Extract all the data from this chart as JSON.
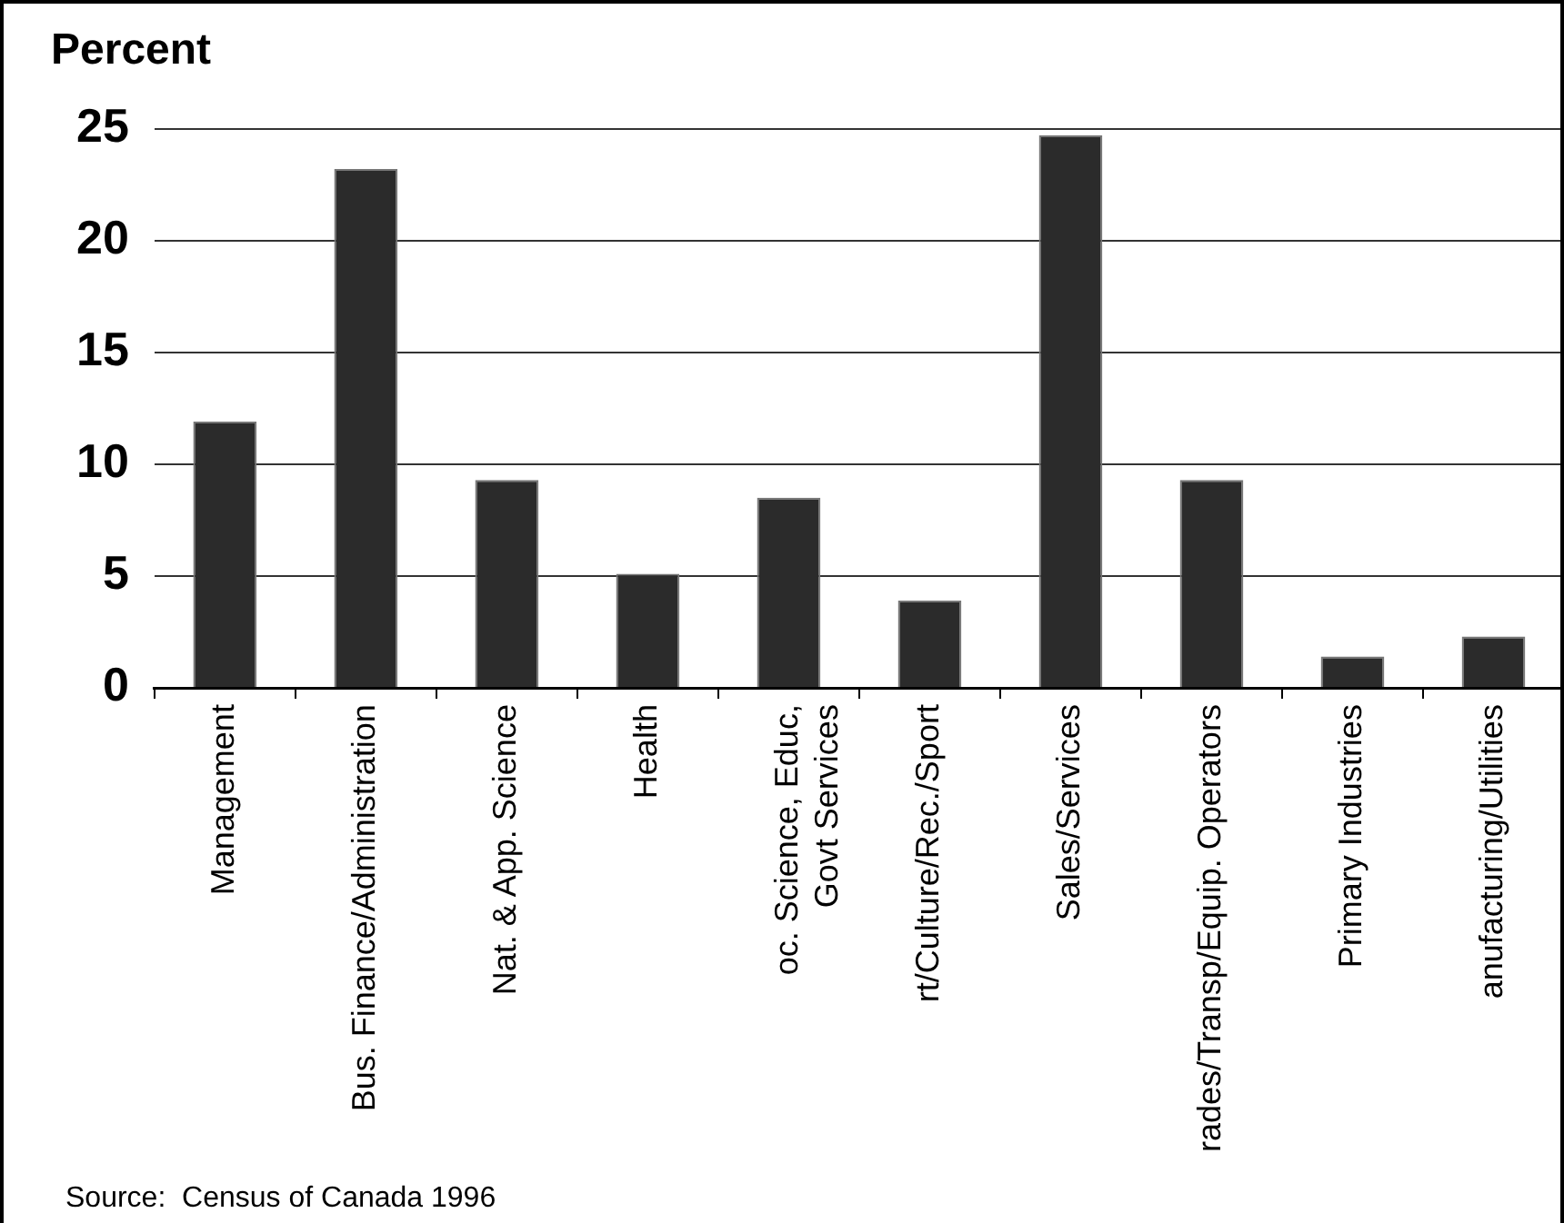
{
  "chart_data": {
    "type": "bar",
    "title": "Percent",
    "categories": [
      "Management",
      "Bus. Finance/Administration",
      "Nat. & App. Science",
      "Health",
      "oc. Science, Educ,\nGovt Services",
      "rt/Culture/Rec./Sport",
      "Sales/Services",
      "rades/Transp/Equip. Operators",
      "Primary Industries",
      "anufacturing/Utilities"
    ],
    "values": [
      11.9,
      23.2,
      9.3,
      5.1,
      8.5,
      3.9,
      24.7,
      9.3,
      1.4,
      2.3
    ],
    "color": "#2b2b2b",
    "ylim": [
      0,
      25
    ],
    "yticks": [
      0,
      5,
      10,
      15,
      20,
      25
    ],
    "grid": "y",
    "legend": false,
    "annotations": [
      "Source:  Census of Canada 1996"
    ]
  }
}
